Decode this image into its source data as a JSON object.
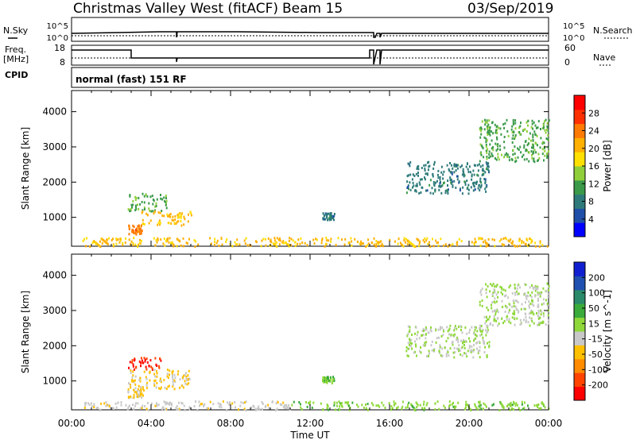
{
  "header": {
    "station": "Christmas Valley West (fitACF)",
    "beam": "Beam 15",
    "date": "03/Sep/2019"
  },
  "left_labels": {
    "nsky": "N.Sky",
    "freq": "Freq.",
    "freq_unit": "[MHz]",
    "cpid": "CPID"
  },
  "right_labels": {
    "nsearch": "N.Search",
    "nave": "Nave"
  },
  "noise_axis": {
    "left_top": "10^5",
    "left_bottom": "10^0",
    "right_top": "10^5",
    "right_bottom": "10^0"
  },
  "freq_axis": {
    "left_top": "18",
    "left_bottom": "8",
    "right_top": "60",
    "right_bottom": "0"
  },
  "cpid_text": "normal (fast) 151 RF",
  "colors": {
    "power_scale": [
      "#0000ff",
      "#1f4fa8",
      "#2e7a7a",
      "#3a9a4a",
      "#8fcf3a",
      "#ffe000",
      "#ffb000",
      "#ff7a00",
      "#ff3000",
      "#ff0000"
    ],
    "velocity_scale": [
      "#ff0000",
      "#ff4400",
      "#ff8c00",
      "#ffc000",
      "#c8c8c8",
      "#8fd83a",
      "#3aaa3a",
      "#2a8a6a",
      "#2050b0",
      "#1020d0"
    ],
    "ground_scatter": "#a9a9a9"
  },
  "chart_data": [
    {
      "type": "heatmap",
      "title": "Power",
      "ylabel": "Slant Range [km]",
      "colorbar_label": "Power [dB]",
      "colorbar_ticks": [
        "4",
        "8",
        "12",
        "16",
        "20",
        "24",
        "28"
      ],
      "ylim": [
        180,
        4600
      ],
      "yticks": [
        1000,
        2000,
        3000,
        4000
      ],
      "xlim": [
        0,
        24
      ],
      "regions": [
        {
          "t0": 2.8,
          "t1": 4.8,
          "r0": 1200,
          "r1": 1700,
          "value": 12
        },
        {
          "t0": 3.5,
          "t1": 6.0,
          "r0": 800,
          "r1": 1200,
          "value": 20
        },
        {
          "t0": 2.8,
          "t1": 3.6,
          "r0": 550,
          "r1": 800,
          "value": 24
        },
        {
          "t0": 0.5,
          "t1": 24,
          "r0": 200,
          "r1": 450,
          "value": 20
        },
        {
          "t0": 12.6,
          "t1": 13.2,
          "r0": 950,
          "r1": 1150,
          "value": 8
        },
        {
          "t0": 16.8,
          "t1": 21.0,
          "r0": 1700,
          "r1": 2600,
          "value": 8
        },
        {
          "t0": 20.5,
          "t1": 24.0,
          "r0": 2600,
          "r1": 3800,
          "value": 12
        }
      ]
    },
    {
      "type": "heatmap",
      "title": "Velocity",
      "ylabel": "Slant Range [km]",
      "colorbar_label": "Velocity [m s^-1]",
      "colorbar_ticks": [
        "-200",
        "-100",
        "-50",
        "-15",
        "15",
        "50",
        "100",
        "200"
      ],
      "ylim": [
        180,
        4600
      ],
      "yticks": [
        1000,
        2000,
        3000,
        4000
      ],
      "xlim": [
        0,
        24
      ],
      "regions": [
        {
          "t0": 2.8,
          "t1": 4.5,
          "r0": 1350,
          "r1": 1700,
          "value": -200
        },
        {
          "t0": 2.8,
          "t1": 6.0,
          "r0": 800,
          "r1": 1350,
          "value": -60
        },
        {
          "t0": 2.8,
          "t1": 3.6,
          "r0": 550,
          "r1": 800,
          "value": -60
        },
        {
          "t0": 0.5,
          "t1": 11.0,
          "r0": 200,
          "r1": 450,
          "value": -30
        },
        {
          "t0": 11.0,
          "t1": 24.0,
          "r0": 200,
          "r1": 450,
          "value": 30
        },
        {
          "t0": 12.6,
          "t1": 13.2,
          "r0": 950,
          "r1": 1150,
          "value": 40
        },
        {
          "t0": 16.8,
          "t1": 21.0,
          "r0": 1700,
          "r1": 2600,
          "value": 0
        },
        {
          "t0": 20.5,
          "t1": 24.0,
          "r0": 2600,
          "r1": 3800,
          "value": 0
        }
      ]
    }
  ],
  "x_axis": {
    "ticks": [
      "00:00",
      "04:00",
      "08:00",
      "12:00",
      "16:00",
      "20:00",
      "00:00"
    ],
    "label": "Time UT"
  }
}
